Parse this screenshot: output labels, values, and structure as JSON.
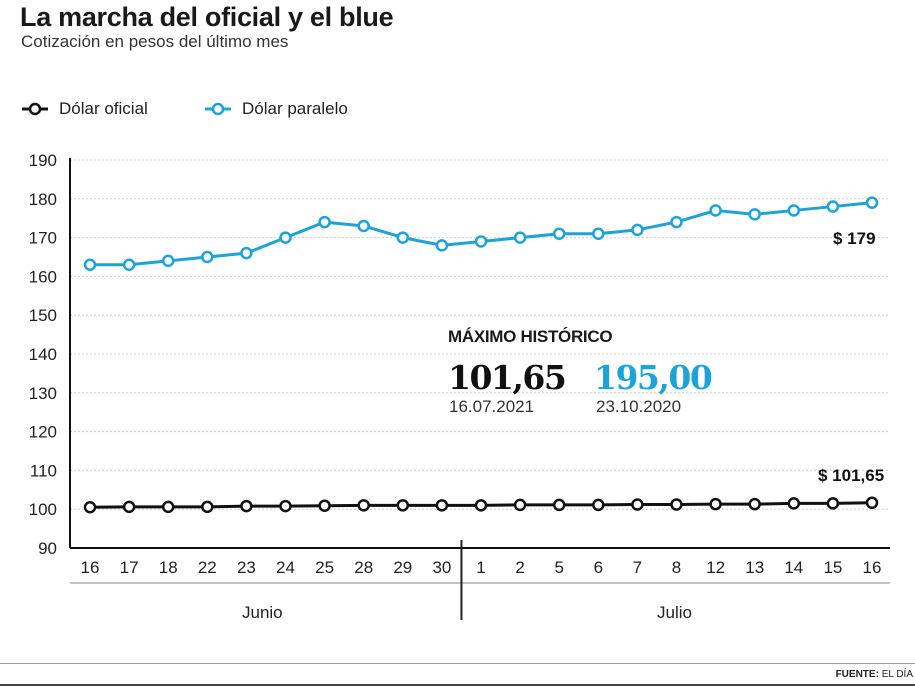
{
  "header": {
    "title": "La marcha del oficial y el blue",
    "subtitle": "Cotización en pesos del último mes"
  },
  "legend": [
    {
      "name": "Dólar oficial",
      "color": "#111111"
    },
    {
      "name": "Dólar paralelo",
      "color": "#1ea3d6"
    }
  ],
  "annotation": {
    "title": "MÁXIMO HISTÓRICO",
    "oficial_value": "101,65",
    "oficial_date": "16.07.2021",
    "paralelo_value": "195,00",
    "paralelo_date": "23.10.2020"
  },
  "end_labels": {
    "paralelo": "$ 179",
    "oficial": "$ 101,65"
  },
  "months": {
    "first": "Junio",
    "second": "Julio"
  },
  "source": {
    "label": "FUENTE:",
    "text": "EL DÍA"
  },
  "chart_data": {
    "type": "line",
    "x": [
      "16",
      "17",
      "18",
      "22",
      "23",
      "24",
      "25",
      "28",
      "29",
      "30",
      "1",
      "2",
      "5",
      "6",
      "7",
      "8",
      "12",
      "13",
      "14",
      "15",
      "16"
    ],
    "series": [
      {
        "name": "Dólar oficial",
        "color": "#111111",
        "values": [
          100.5,
          100.6,
          100.6,
          100.6,
          100.8,
          100.8,
          100.9,
          101.0,
          101.0,
          101.0,
          101.0,
          101.1,
          101.1,
          101.1,
          101.2,
          101.2,
          101.3,
          101.3,
          101.5,
          101.5,
          101.65
        ]
      },
      {
        "name": "Dólar paralelo",
        "color": "#1ea3d6",
        "values": [
          163,
          163,
          164,
          165,
          166,
          170,
          174,
          173,
          170,
          168,
          169,
          170,
          171,
          171,
          172,
          174,
          177,
          176,
          177,
          178,
          179
        ]
      }
    ],
    "ylim": [
      90,
      190
    ],
    "yticks": [
      90,
      100,
      110,
      120,
      130,
      140,
      150,
      160,
      170,
      180,
      190
    ],
    "grid": true,
    "legend_position": "top-left"
  }
}
